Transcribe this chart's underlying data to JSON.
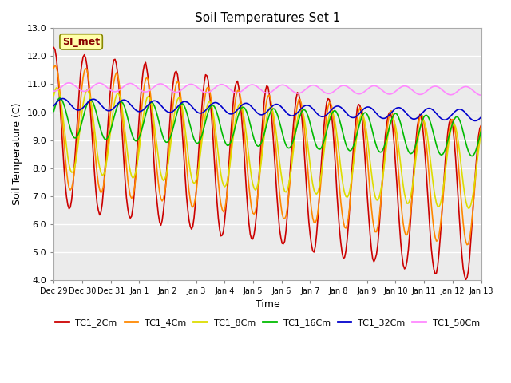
{
  "title": "Soil Temperatures Set 1",
  "xlabel": "Time",
  "ylabel": "Soil Temperature (C)",
  "ylim": [
    4.0,
    13.0
  ],
  "yticks": [
    4.0,
    5.0,
    6.0,
    7.0,
    8.0,
    9.0,
    10.0,
    11.0,
    12.0,
    13.0
  ],
  "xtick_labels": [
    "Dec 29",
    "Dec 30",
    "Dec 31",
    "Jan 1",
    "Jan 2",
    "Jan 3",
    "Jan 4",
    "Jan 5",
    "Jan 6",
    "Jan 7",
    "Jan 8",
    "Jan 9",
    "Jan 10",
    "Jan 11",
    "Jan 12",
    "Jan 13"
  ],
  "annotation": "SI_met",
  "series_names": [
    "TC1_2Cm",
    "TC1_4Cm",
    "TC1_8Cm",
    "TC1_16Cm",
    "TC1_32Cm",
    "TC1_50Cm"
  ],
  "series_colors": [
    "#cc0000",
    "#ff8800",
    "#dddd00",
    "#00bb00",
    "#0000cc",
    "#ff88ff"
  ],
  "plot_bg": "#ebebeb",
  "n_points": 336,
  "days": 14
}
